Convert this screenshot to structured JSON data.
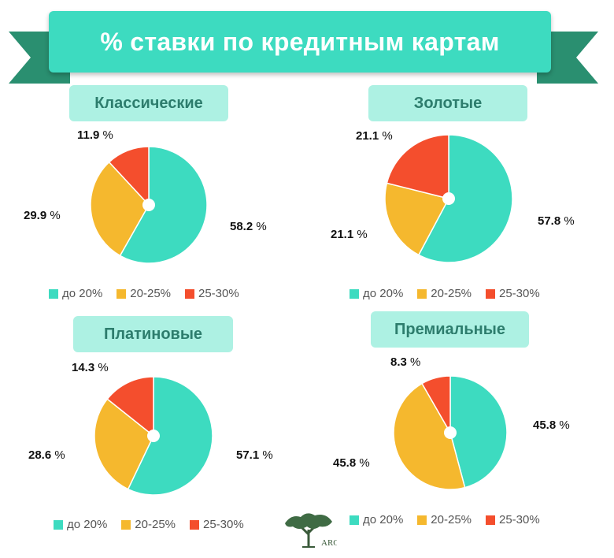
{
  "title": "% ставки по кредитным картам",
  "colors": {
    "accent": "#3ddbc0",
    "ribbon": "#2a8f70",
    "label_bg": "#adf1e3",
    "label_text": "#2d7d6d"
  },
  "chart_data": [
    {
      "type": "pie",
      "title": "Классические",
      "categories": [
        "до 20%",
        "20-25%",
        "25-30%"
      ],
      "values": [
        58.2,
        29.9,
        11.9
      ],
      "value_labels": [
        "58.2",
        "29.9",
        "11.9"
      ],
      "colors": [
        "#3ddbc0",
        "#f5b82e",
        "#f44e2d"
      ]
    },
    {
      "type": "pie",
      "title": "Золотые",
      "categories": [
        "до 20%",
        "20-25%",
        "25-30%"
      ],
      "values": [
        57.8,
        21.1,
        21.1
      ],
      "value_labels": [
        "57.8",
        "21.1",
        "21.1"
      ],
      "colors": [
        "#3ddbc0",
        "#f5b82e",
        "#f44e2d"
      ]
    },
    {
      "type": "pie",
      "title": "Платиновые",
      "categories": [
        "до 20%",
        "20-25%",
        "25-30%"
      ],
      "values": [
        57.1,
        28.6,
        14.3
      ],
      "value_labels": [
        "57.1",
        "28.6",
        "14.3"
      ],
      "colors": [
        "#3ddbc0",
        "#f5b82e",
        "#f44e2d"
      ]
    },
    {
      "type": "pie",
      "title": "Премиальные",
      "categories": [
        "до 20%",
        "20-25%",
        "25-30%"
      ],
      "values": [
        45.8,
        45.8,
        8.3
      ],
      "value_labels": [
        "45.8",
        "45.8",
        "8.3"
      ],
      "colors": [
        "#3ddbc0",
        "#f5b82e",
        "#f44e2d"
      ]
    }
  ],
  "logo": {
    "text": "ARG",
    "icon": "tree-logo-icon"
  }
}
